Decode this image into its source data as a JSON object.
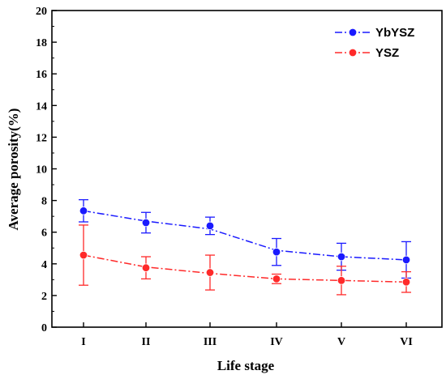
{
  "chart_data": {
    "type": "line",
    "categories": [
      "I",
      "II",
      "III",
      "IV",
      "V",
      "VI"
    ],
    "xlabel": "Life stage",
    "ylabel": "Average porosity(%)",
    "ylim": [
      0,
      20
    ],
    "yticks": [
      0,
      2,
      4,
      6,
      8,
      10,
      12,
      14,
      16,
      18,
      20
    ],
    "grid": false,
    "legend_position": "top-right",
    "series": [
      {
        "name": "YbYSZ",
        "color": "#1a1aff",
        "values": [
          7.35,
          6.6,
          6.4,
          4.75,
          4.45,
          4.25
        ],
        "error": [
          0.7,
          0.65,
          0.55,
          0.85,
          0.85,
          1.15
        ],
        "trend": [
          7.35,
          6.7,
          6.2,
          4.85,
          4.45,
          4.25
        ]
      },
      {
        "name": "YSZ",
        "color": "#ff2a2a",
        "values": [
          4.55,
          3.75,
          3.45,
          3.05,
          2.95,
          2.85
        ],
        "error": [
          1.9,
          0.7,
          1.1,
          0.3,
          0.9,
          0.65
        ],
        "trend": [
          4.55,
          3.8,
          3.4,
          3.05,
          2.95,
          2.85
        ]
      }
    ]
  }
}
